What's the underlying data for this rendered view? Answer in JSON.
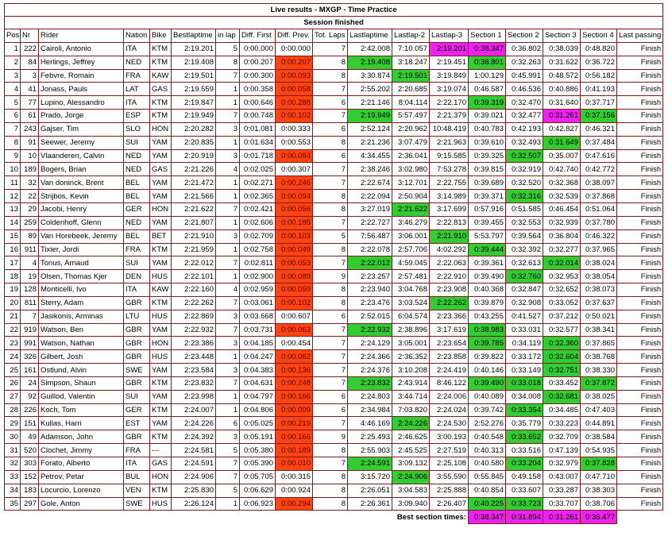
{
  "title": "Live results - MXGP - Time Practice",
  "subtitle": "Session finished",
  "table": {
    "headers": [
      "Pos",
      "Nr",
      "Rider",
      "Nation",
      "Bike",
      "Bestlaptime",
      "in lap",
      "Diff. First",
      "Diff. Prev.",
      "Tot. Laps",
      "Lastlaptime",
      "Lastlap-2",
      "Lastlap-3",
      "Section 1",
      "Section 2",
      "Section 3",
      "Section 4",
      "Last passing"
    ],
    "rows": [
      [
        "1",
        "222",
        "Cairoli, Antonio",
        "ITA",
        "KTM",
        "2:19.201",
        "5",
        "0:00.000",
        "0:00.000",
        "7",
        "2:42.008",
        "7:10.057",
        {
          "text": "2:19.201",
          "bg": "#ee22ee"
        },
        {
          "text": "0:38.347",
          "bg": "#ee22ee"
        },
        "0:36.802",
        "0:38.039",
        "0:48.820",
        "Finish"
      ],
      [
        "2",
        "84",
        "Herlings, Jeffrey",
        "NED",
        "KTM",
        "2:19.408",
        "8",
        "0:00.207",
        {
          "text": "0:00.207",
          "bg": "#ff4411"
        },
        "8",
        {
          "text": "2:19.408",
          "bg": "#33cc33"
        },
        "3:18.247",
        "2:19.451",
        {
          "text": "0:38.801",
          "bg": "#33cc33"
        },
        "0:32.263",
        "0:31.622",
        "0:36.722",
        "Finish"
      ],
      [
        "3",
        "3",
        "Febvre, Romain",
        "FRA",
        "KAW",
        "2:19.501",
        "7",
        "0:00.300",
        {
          "text": "0:00.093",
          "bg": "#ff4411"
        },
        "8",
        "3:30.874",
        {
          "text": "2:19.501",
          "bg": "#33cc33"
        },
        "3:19.849",
        "1:00.129",
        "0:45.991",
        "0:48.572",
        "0:56.182",
        "Finish"
      ],
      [
        "4",
        "41",
        "Jonass, Pauls",
        "LAT",
        "GAS",
        "2:19.559",
        "1",
        "0:00.358",
        {
          "text": "0:00.058",
          "bg": "#ff4411"
        },
        "7",
        "2:55.202",
        "2:20.685",
        "3:19.074",
        "0:46.587",
        "0:46.536",
        "0:40.886",
        "0:41.193",
        "Finish"
      ],
      [
        "5",
        "77",
        "Lupino, Alessandro",
        "ITA",
        "KTM",
        "2:19.847",
        "1",
        "0:00.646",
        {
          "text": "0:00.288",
          "bg": "#ff4411"
        },
        "6",
        "2:21.146",
        "8:04.114",
        "2:22.170",
        {
          "text": "0:39.319",
          "bg": "#33cc33"
        },
        "0:32.470",
        "0:31.640",
        "0:37.717",
        "Finish"
      ],
      [
        "6",
        "61",
        "Prado, Jorge",
        "ESP",
        "KTM",
        "2:19.949",
        "7",
        "0:00.748",
        {
          "text": "0:00.102",
          "bg": "#ff4411"
        },
        "7",
        {
          "text": "2:19.949",
          "bg": "#33cc33"
        },
        "5:57.497",
        "2:21.379",
        "0:39.021",
        "0:32.477",
        {
          "text": "0:31.261",
          "bg": "#ee22ee"
        },
        {
          "text": "0:37.156",
          "bg": "#33cc33"
        },
        "Finish"
      ],
      [
        "7",
        "243",
        "Gajser, Tim",
        "SLO",
        "HON",
        "2:20.282",
        "3",
        "0:01.081",
        "0:00.333",
        "6",
        "2:52.124",
        "2:20.962",
        "10:48.419",
        "0:40.783",
        "0:42.193",
        "0:42.827",
        "0:46.321",
        "Finish"
      ],
      [
        "8",
        "91",
        "Seewer, Jeremy",
        "SUI",
        "YAM",
        "2:20.835",
        "1",
        "0:01.634",
        "0:00.553",
        "8",
        "2:21.236",
        "3:07.479",
        "2:21.963",
        "0:39.610",
        "0:32.493",
        {
          "text": "0:31.649",
          "bg": "#33cc33"
        },
        "0:37.484",
        "Finish"
      ],
      [
        "9",
        "10",
        "Vlaanderen, Calvin",
        "NED",
        "YAM",
        "2:20.919",
        "3",
        "0:01.718",
        {
          "text": "0:00.084",
          "bg": "#ff4411"
        },
        "6",
        "4:34.455",
        "2:36.041",
        "9:15.585",
        "0:39.325",
        {
          "text": "0:32.507",
          "bg": "#33cc33"
        },
        "0:35.007",
        "0:47.616",
        "Finish"
      ],
      [
        "10",
        "189",
        "Bogers, Brian",
        "NED",
        "GAS",
        "2:21.226",
        "4",
        "0:02.025",
        "0:00.307",
        "7",
        "2:38.246",
        "3:02.980",
        "7:53.278",
        "0:39.815",
        "0:32.919",
        "0:42.740",
        "0:42.772",
        "Finish"
      ],
      [
        "11",
        "32",
        "Van doninck, Brent",
        "BEL",
        "YAM",
        "2:21.472",
        "1",
        "0:02.271",
        {
          "text": "0:00.246",
          "bg": "#ff4411"
        },
        "7",
        "2:22.674",
        "3:12.701",
        "2:22.755",
        "0:39.689",
        "0:32.520",
        "0:32.368",
        "0:38.097",
        "Finish"
      ],
      [
        "12",
        "22",
        "Strijbos, Kevin",
        "BEL",
        "YAM",
        "2:21.566",
        "1",
        "0:02.365",
        {
          "text": "0:00.094",
          "bg": "#ff4411"
        },
        "8",
        "2:22.094",
        "2:50.904",
        "3:14.989",
        "0:39.371",
        {
          "text": "0:32.316",
          "bg": "#33cc33"
        },
        "0:32.539",
        "0:37.868",
        "Finish"
      ],
      [
        "13",
        "29",
        "Jacobi, Henry",
        "GER",
        "HON",
        "2:21.622",
        "7",
        "0:02.421",
        {
          "text": "0:00.056",
          "bg": "#ff4411"
        },
        "8",
        "3:27.019",
        {
          "text": "2:21.622",
          "bg": "#33cc33"
        },
        "3:17.699",
        "0:57.916",
        "0:51.585",
        "0:46.454",
        "0:51.064",
        "Finish"
      ],
      [
        "14",
        "259",
        "Coldenhoff, Glenn",
        "NED",
        "YAM",
        "2:21.807",
        "1",
        "0:02.606",
        {
          "text": "0:00.185",
          "bg": "#ff4411"
        },
        "7",
        "2:22.727",
        "3:46.279",
        "2:22.813",
        "0:39.455",
        "0:32.553",
        "0:32.939",
        "0:37.780",
        "Finish"
      ],
      [
        "15",
        "89",
        "Van Horebeek, Jeremy",
        "BEL",
        "BET",
        "2:21.910",
        "3",
        "0:02.709",
        {
          "text": "0:00.103",
          "bg": "#ff4411"
        },
        "5",
        "7:56.487",
        "3:06.001",
        {
          "text": "2:21.910",
          "bg": "#33cc33"
        },
        "5:53.797",
        "0:39.564",
        "0:36.804",
        "0:46.322",
        "Finish"
      ],
      [
        "16",
        "911",
        "Tixier, Jordi",
        "FRA",
        "KTM",
        "2:21.959",
        "1",
        "0:02.758",
        {
          "text": "0:00.049",
          "bg": "#ff4411"
        },
        "8",
        "2:22.078",
        "2:57.706",
        "4:02.292",
        {
          "text": "0:39.444",
          "bg": "#33cc33"
        },
        "0:32.392",
        "0:32.277",
        "0:37.965",
        "Finish"
      ],
      [
        "17",
        "4",
        "Tonus, Arnaud",
        "SUI",
        "YAM",
        "2:22.012",
        "7",
        "0:02.811",
        {
          "text": "0:00.053",
          "bg": "#ff4411"
        },
        "7",
        {
          "text": "2:22.012",
          "bg": "#33cc33"
        },
        "4:59.045",
        "2:22.063",
        "0:39.361",
        "0:32.613",
        {
          "text": "0:32.014",
          "bg": "#33cc33"
        },
        "0:38.024",
        "Finish"
      ],
      [
        "18",
        "19",
        "Olsen, Thomas Kjer",
        "DEN",
        "HUS",
        "2:22.101",
        "1",
        "0:02.900",
        {
          "text": "0:00.089",
          "bg": "#ff4411"
        },
        "9",
        "2:23.257",
        "2:57.481",
        "2:22.910",
        "0:39.490",
        {
          "text": "0:32.760",
          "bg": "#33cc33"
        },
        "0:32.953",
        "0:38.054",
        "Finish"
      ],
      [
        "19",
        "128",
        "Monticelli, Ivo",
        "ITA",
        "KAW",
        "2:22.160",
        "4",
        "0:02.959",
        {
          "text": "0:00.059",
          "bg": "#ff4411"
        },
        "8",
        "2:23.940",
        "3:04.768",
        "2:23.908",
        "0:40.368",
        "0:32.847",
        "0:32.652",
        "0:38.073",
        "Finish"
      ],
      [
        "20",
        "811",
        "Sterry, Adam",
        "GBR",
        "KTM",
        "2:22.262",
        "7",
        "0:03.061",
        {
          "text": "0:00.102",
          "bg": "#ff4411"
        },
        "8",
        "2:23.476",
        "3:03.524",
        {
          "text": "2:22.262",
          "bg": "#33cc33"
        },
        "0:39.879",
        "0:32.908",
        "0:33.052",
        "0:37.637",
        "Finish"
      ],
      [
        "21",
        "7",
        "Jasikonis, Arminas",
        "LTU",
        "HUS",
        "2:22.869",
        "3",
        "0:03.668",
        "0:00.607",
        "6",
        "2:52.015",
        "6:04.574",
        "2:23.366",
        "0:43.255",
        "0:41.527",
        "0:37.212",
        "0:50.021",
        "Finish"
      ],
      [
        "22",
        "919",
        "Watson, Ben",
        "GBR",
        "YAM",
        "2:22.932",
        "7",
        "0:03.731",
        {
          "text": "0:00.063",
          "bg": "#ff4411"
        },
        "7",
        {
          "text": "2:22.932",
          "bg": "#33cc33"
        },
        "2:38.896",
        "3:17.619",
        {
          "text": "0:38.983",
          "bg": "#33cc33"
        },
        "0:33.031",
        "0:32.577",
        "0:38.341",
        "Finish"
      ],
      [
        "23",
        "991",
        "Watson, Nathan",
        "GBR",
        "HON",
        "2:23.386",
        "3",
        "0:04.185",
        "0:00.454",
        "7",
        "2:24.129",
        "3:05.001",
        "2:23.654",
        {
          "text": "0:39.785",
          "bg": "#33cc33"
        },
        "0:34.119",
        {
          "text": "0:32.360",
          "bg": "#33cc33"
        },
        "0:37.865",
        "Finish"
      ],
      [
        "24",
        "326",
        "Gilbert, Josh",
        "GBR",
        "HUS",
        "2:23.448",
        "1",
        "0:04.247",
        {
          "text": "0:00.062",
          "bg": "#ff4411"
        },
        "7",
        "2:24.366",
        "2:36.352",
        "2:23.858",
        "0:39.822",
        "0:33.172",
        {
          "text": "0:32.604",
          "bg": "#33cc33"
        },
        "0:38.768",
        "Finish"
      ],
      [
        "25",
        "161",
        "Ostlund, Alvin",
        "SWE",
        "YAM",
        "2:23.584",
        "3",
        "0:04.383",
        {
          "text": "0:00.136",
          "bg": "#ff4411"
        },
        "7",
        "2:24.376",
        "3:10.208",
        "2:24.419",
        "0:40.146",
        "0:33.149",
        {
          "text": "0:32.751",
          "bg": "#33cc33"
        },
        "0:38.330",
        "Finish"
      ],
      [
        "26",
        "24",
        "Simpson, Shaun",
        "GBR",
        "KTM",
        "2:23.832",
        "7",
        "0:04.631",
        {
          "text": "0:00.248",
          "bg": "#ff4411"
        },
        "7",
        {
          "text": "2:23.832",
          "bg": "#33cc33"
        },
        "2:43.914",
        "8:46.122",
        {
          "text": "0:39.490",
          "bg": "#33cc33"
        },
        {
          "text": "0:33.018",
          "bg": "#33cc33"
        },
        "0:33.452",
        {
          "text": "0:37.872",
          "bg": "#33cc33"
        },
        "Finish"
      ],
      [
        "27",
        "92",
        "Guillod, Valentin",
        "SUI",
        "YAM",
        "2:23.998",
        "1",
        "0:04.797",
        {
          "text": "0:00.166",
          "bg": "#ff4411"
        },
        "6",
        "2:24.803",
        "3:44.714",
        "2:24.006",
        "0:40.089",
        "0:34.008",
        {
          "text": "0:32.681",
          "bg": "#33cc33"
        },
        "0:38.025",
        "Finish"
      ],
      [
        "28",
        "226",
        "Koch, Tom",
        "GER",
        "KTM",
        "2:24.007",
        "1",
        "0:04.806",
        {
          "text": "0:00.009",
          "bg": "#ff4411"
        },
        "6",
        "2:34.984",
        "7:03.820",
        "2:24.024",
        "0:39.742",
        {
          "text": "0:33.354",
          "bg": "#33cc33"
        },
        "0:34.485",
        "0:47.403",
        "Finish"
      ],
      [
        "29",
        "151",
        "Kullas, Harri",
        "EST",
        "YAM",
        "2:24.226",
        "6",
        "0:05.025",
        {
          "text": "0:00.219",
          "bg": "#ff4411"
        },
        "7",
        "4:46.169",
        {
          "text": "2:24.226",
          "bg": "#33cc33"
        },
        "2:24.530",
        "2:52.276",
        "0:35.779",
        "0:33.223",
        "0:44.891",
        "Finish"
      ],
      [
        "30",
        "49",
        "Adamson, John",
        "GBR",
        "KTM",
        "2:24.392",
        "3",
        "0:05.191",
        {
          "text": "0:00.166",
          "bg": "#ff4411"
        },
        "9",
        "2:25.493",
        "2:46.625",
        "3:00.193",
        "0:40.548",
        {
          "text": "0:33.652",
          "bg": "#33cc33"
        },
        "0:32.709",
        "0:38.584",
        "Finish"
      ],
      [
        "31",
        "520",
        "Clochet, Jimmy",
        "FRA",
        "---",
        "2:24.581",
        "5",
        "0:05.380",
        {
          "text": "0:00.189",
          "bg": "#ff4411"
        },
        "8",
        "2:55.903",
        "2:45.525",
        "2:27.519",
        "0:40.313",
        "0:33.516",
        "0:47.139",
        "0:54.935",
        "Finish"
      ],
      [
        "32",
        "303",
        "Forato, Alberto",
        "ITA",
        "GAS",
        "2:24.591",
        "7",
        "0:05.390",
        {
          "text": "0:00.010",
          "bg": "#ff4411"
        },
        "7",
        {
          "text": "2:24.591",
          "bg": "#33cc33"
        },
        "3:09.132",
        "2:25.108",
        "0:40.580",
        {
          "text": "0:33.204",
          "bg": "#33cc33"
        },
        "0:32.979",
        {
          "text": "0:37.828",
          "bg": "#33cc33"
        },
        "Finish"
      ],
      [
        "33",
        "152",
        "Petrov, Petar",
        "BUL",
        "HON",
        "2:24.906",
        "7",
        "0:05.705",
        "0:00.315",
        "8",
        "3:15.720",
        {
          "text": "2:24.906",
          "bg": "#33cc33"
        },
        "3:55.590",
        "0:55.845",
        "0:49.158",
        "0:43.007",
        "0:47.710",
        "Finish"
      ],
      [
        "34",
        "183",
        "Locurcio, Lorenzo",
        "VEN",
        "KTM",
        "2:25.830",
        "5",
        "0:06.629",
        "0:00.924",
        "8",
        "2:26.051",
        "3:04.583",
        "2:25.888",
        "0:40.854",
        "0:33.607",
        "0:33.287",
        "0:38.303",
        "Finish"
      ],
      [
        "35",
        "297",
        "Gole, Anton",
        "SWE",
        "HUS",
        "2:26.124",
        "1",
        "0:06.923",
        {
          "text": "0:00.294",
          "bg": "#ff4411"
        },
        "8",
        "2:26.361",
        "3:09.940",
        "2:26.407",
        {
          "text": "0:40.225",
          "bg": "#33cc33"
        },
        {
          "text": "0:33.723",
          "bg": "#33cc33"
        },
        "0:33.707",
        "0:38.706",
        "Finish"
      ]
    ],
    "footer": {
      "label": "Best section times:",
      "values": [
        "0:38.347",
        "0:31.894",
        "0:31.261",
        "0:36.477"
      ],
      "bg": "#ee22ee"
    }
  }
}
